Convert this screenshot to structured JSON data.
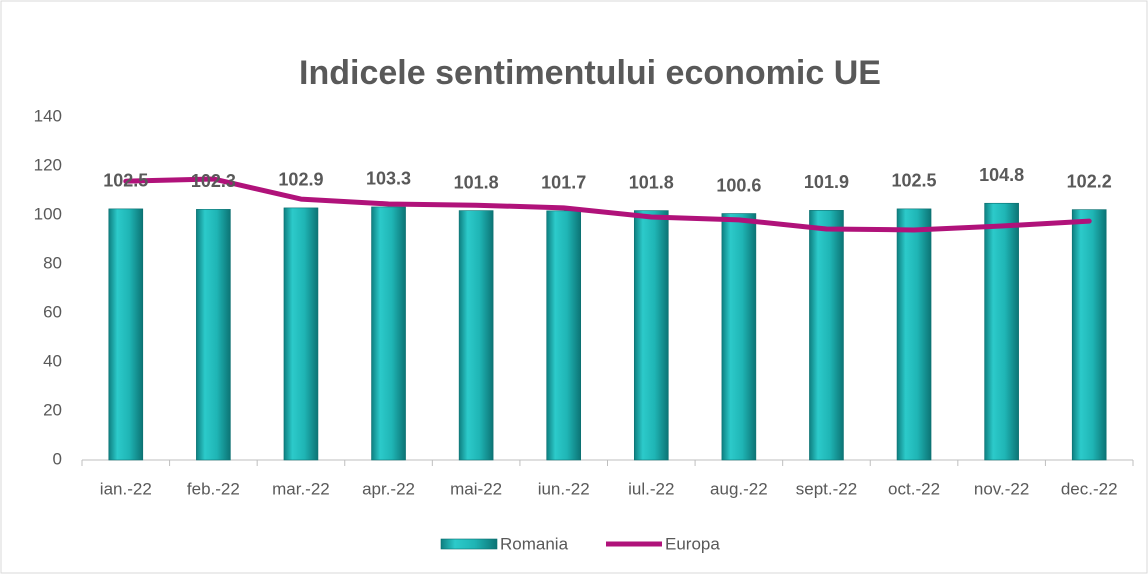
{
  "chart_data": {
    "type": "bar_line",
    "title": "Indicele sentimentului economic UE",
    "categories": [
      "ian.-22",
      "feb.-22",
      "mar.-22",
      "apr.-22",
      "mai-22",
      "iun.-22",
      "iul.-22",
      "aug.-22",
      "sept.-22",
      "oct.-22",
      "nov.-22",
      "dec.-22"
    ],
    "series": [
      {
        "name": "Romania",
        "type": "bar",
        "color": "#1fb5b5",
        "values": [
          102.5,
          102.3,
          102.9,
          103.3,
          101.8,
          101.7,
          101.8,
          100.6,
          101.9,
          102.5,
          104.8,
          102.2
        ]
      },
      {
        "name": "Europa",
        "type": "line",
        "color": "#b0127a",
        "values": [
          113.8,
          114.7,
          106.5,
          104.5,
          104.0,
          102.9,
          99.2,
          98.0,
          94.3,
          93.9,
          95.5,
          97.5
        ]
      }
    ],
    "ylim": [
      0,
      140
    ],
    "yticks": [
      0,
      20,
      40,
      60,
      80,
      100,
      120,
      140
    ],
    "grid": false,
    "legend": "bottom"
  }
}
